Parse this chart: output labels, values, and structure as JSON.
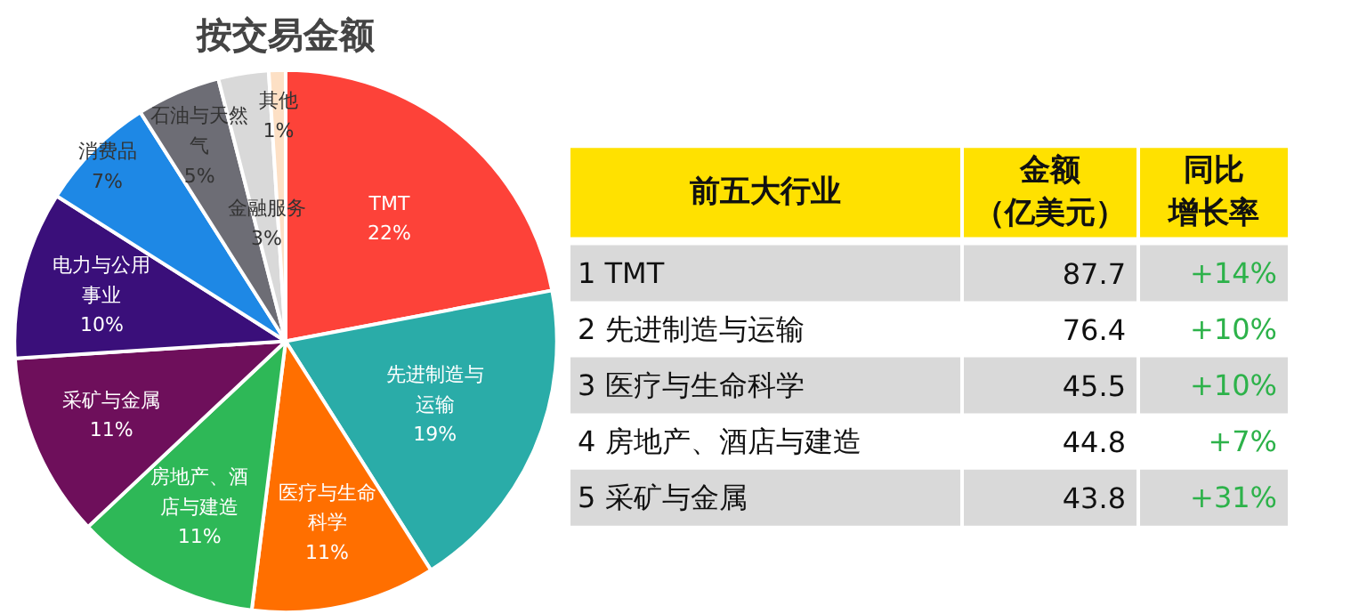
{
  "chart_data": [
    {
      "type": "pie",
      "title": "按交易金额",
      "categories": [
        "TMT",
        "先进制造与运输",
        "医疗与生命科学",
        "房地产、酒店与建造",
        "采矿与金属",
        "电力与公用事业",
        "消费品",
        "石油与天然气",
        "金融服务",
        "其他"
      ],
      "values": [
        22,
        19,
        11,
        11,
        11,
        10,
        7,
        5,
        3,
        1
      ],
      "value_labels": [
        "22%",
        "19%",
        "11%",
        "11%",
        "11%",
        "10%",
        "7%",
        "5%",
        "3%",
        "1%"
      ],
      "colors": [
        "#fd4239",
        "#2aaca8",
        "#ff6f00",
        "#2eb857",
        "#6e0f5b",
        "#3a0f7a",
        "#1e88e5",
        "#6d6d75",
        "#d9d9d9",
        "#fde0c5"
      ]
    },
    {
      "type": "other",
      "annotations": [
        "前五大行业",
        "金额（亿美元）",
        "同比增长率",
        "1 TMT",
        "87.7",
        "+14%",
        "2 先进制造与运输",
        "76.4",
        "+10%",
        "3 医疗与生命科学",
        "45.5",
        "+10%",
        "4 房地产、酒店与建造",
        "44.8",
        "+7%",
        "5 采矿与金属",
        "43.8",
        "+31%"
      ]
    }
  ]
}
